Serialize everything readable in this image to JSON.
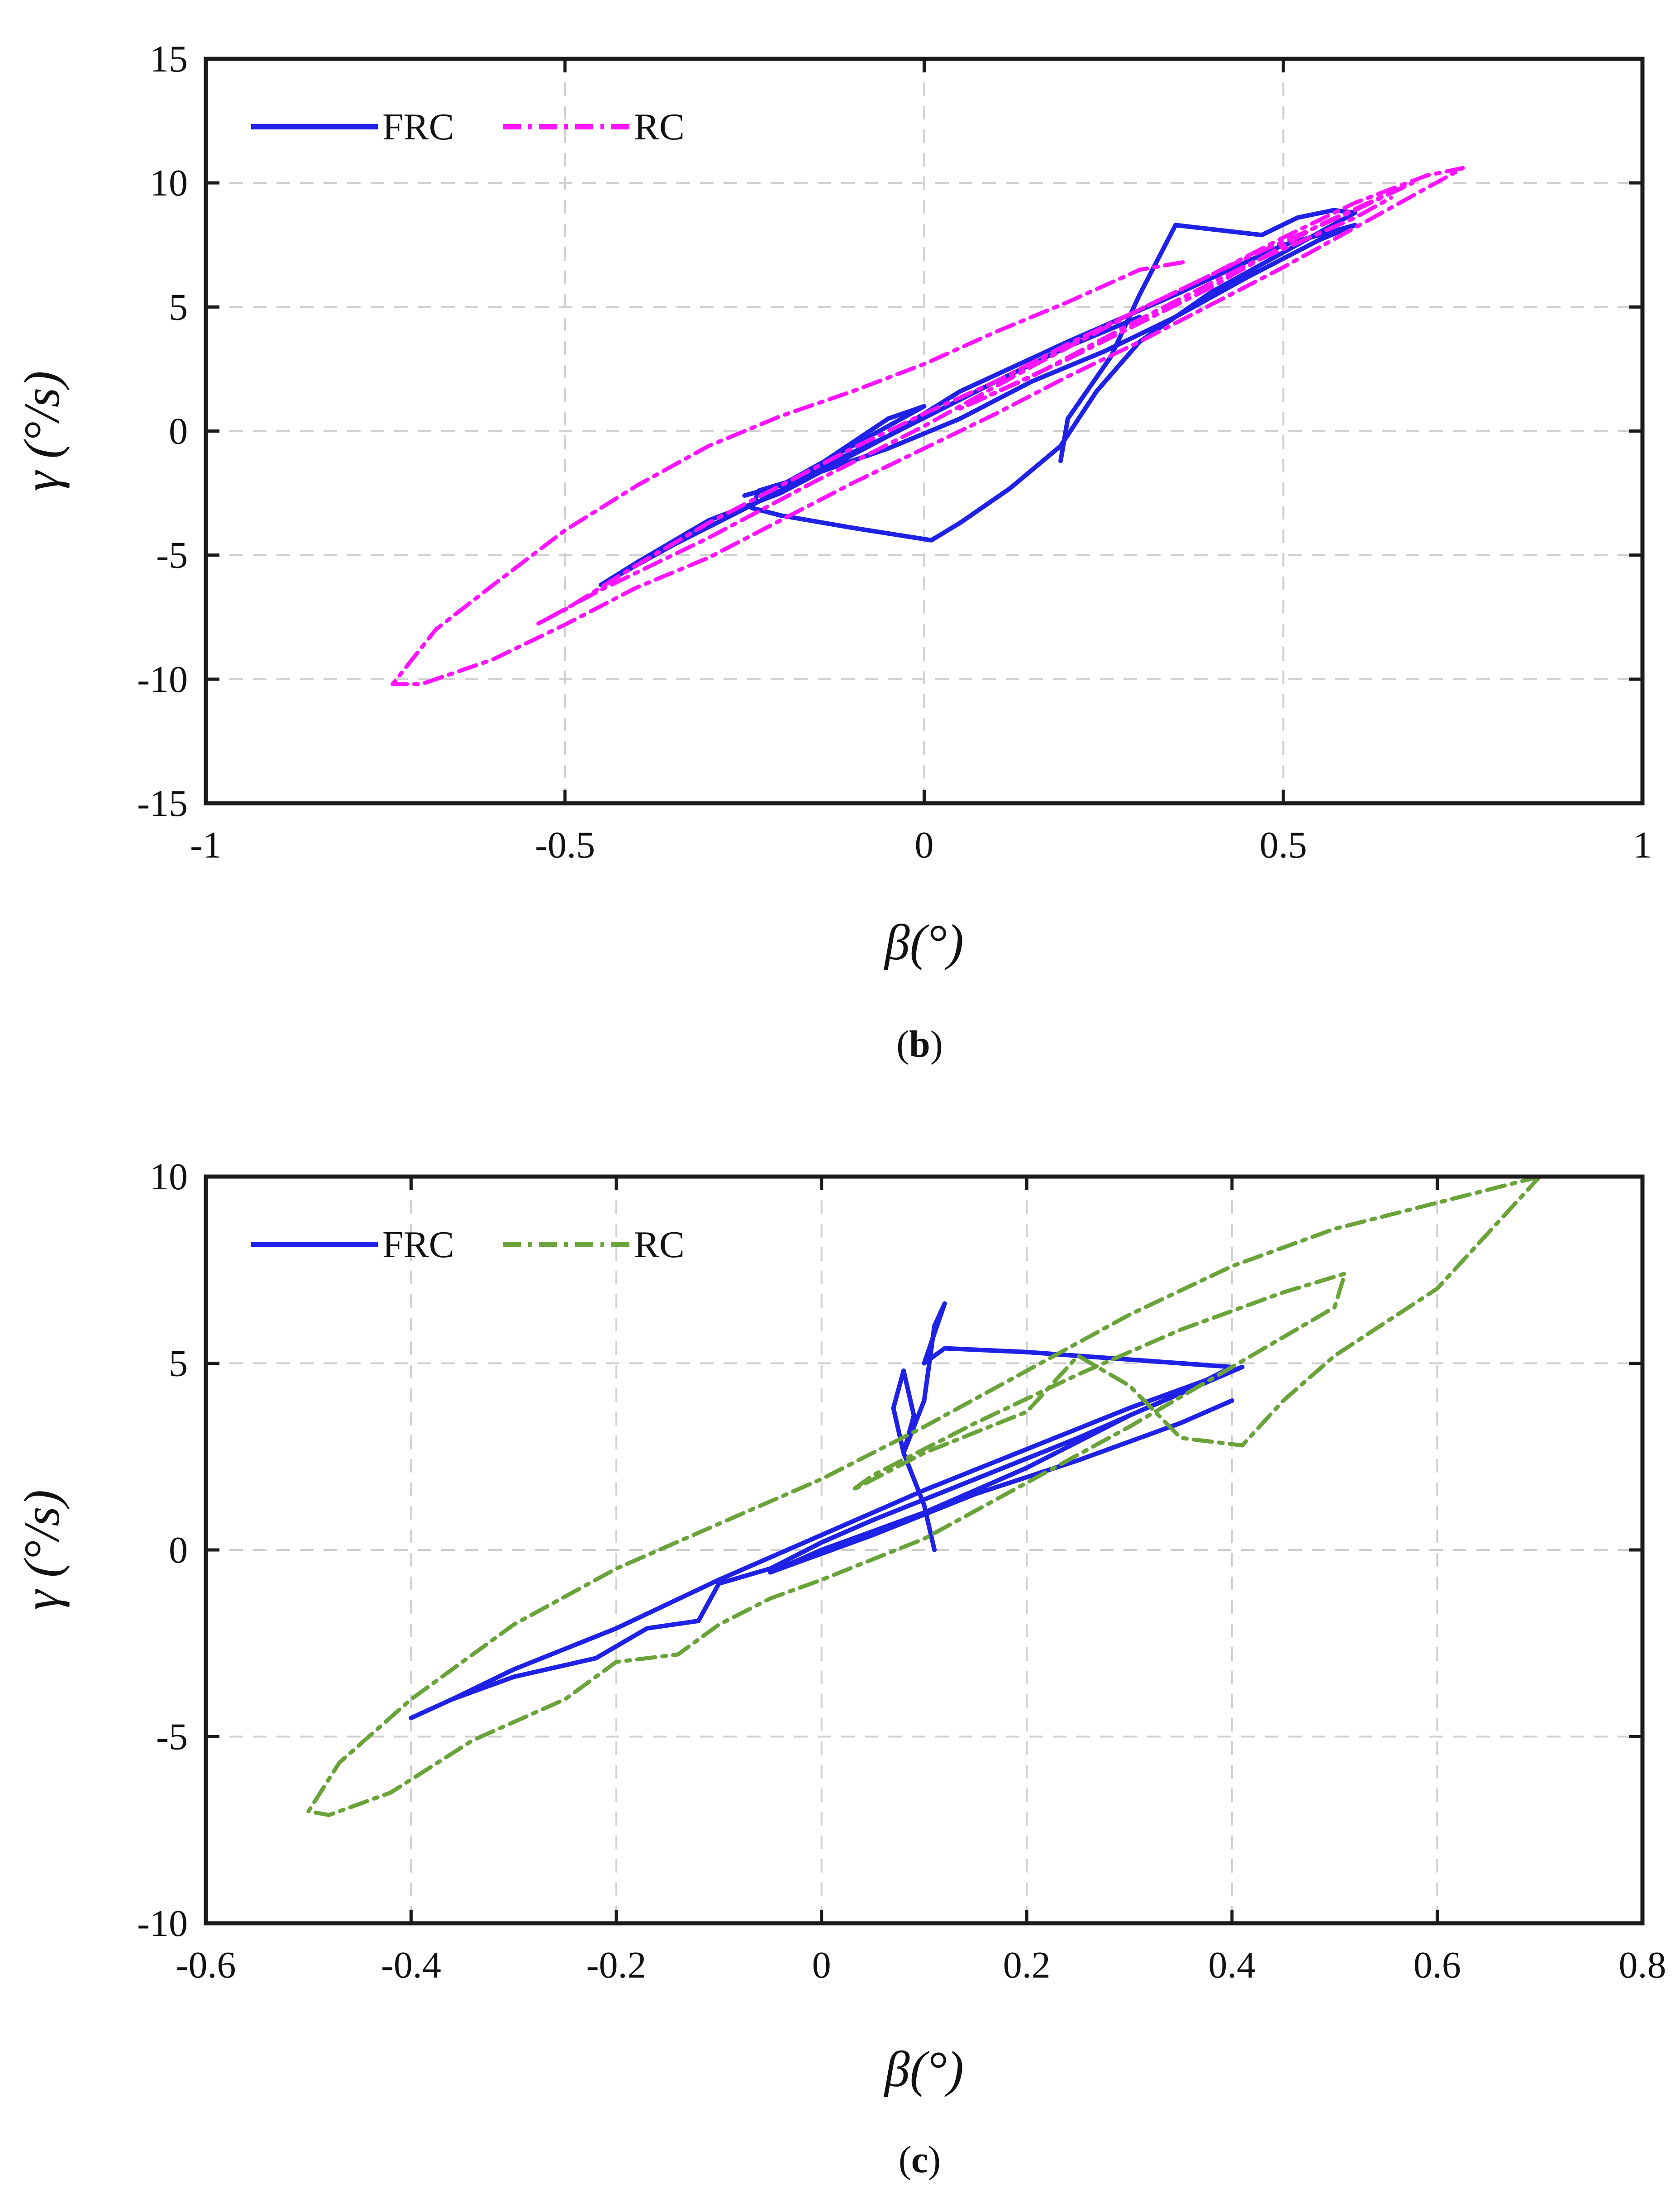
{
  "chart_data": [
    {
      "type": "line",
      "panel_label": "b",
      "xlabel": "β(°)",
      "ylabel": "γ (°/s)",
      "xlim": [
        -1,
        1
      ],
      "ylim": [
        -15,
        15
      ],
      "xticks": [
        -1,
        -0.5,
        0,
        0.5,
        1
      ],
      "yticks": [
        -15,
        -10,
        -5,
        0,
        5,
        10,
        15
      ],
      "xtick_labels": [
        "-1",
        "-0.5",
        "0",
        "0.5",
        "1"
      ],
      "ytick_labels": [
        "-15",
        "-10",
        "-5",
        "0",
        "5",
        "10",
        "15"
      ],
      "grid": true,
      "legend_position": "top-left",
      "series": [
        {
          "name": "FRC",
          "color": "#1f22e6",
          "style": "solid",
          "points": [
            [
              0.19,
              -1.2
            ],
            [
              0.2,
              0.5
            ],
            [
              0.26,
              3.0
            ],
            [
              0.3,
              5.5
            ],
            [
              0.35,
              8.3
            ],
            [
              0.47,
              7.9
            ],
            [
              0.52,
              8.6
            ],
            [
              0.57,
              8.9
            ],
            [
              0.6,
              8.8
            ],
            [
              0.5,
              7.2
            ],
            [
              0.4,
              5.6
            ],
            [
              0.3,
              3.6
            ],
            [
              0.24,
              1.6
            ],
            [
              0.19,
              -0.6
            ],
            [
              0.12,
              -2.3
            ],
            [
              0.05,
              -3.7
            ],
            [
              0.01,
              -4.4
            ],
            [
              -0.1,
              -3.9
            ],
            [
              -0.2,
              -3.4
            ],
            [
              -0.24,
              -3.1
            ],
            [
              -0.23,
              -2.4
            ],
            [
              -0.15,
              -1.7
            ],
            [
              -0.05,
              -0.7
            ],
            [
              0.05,
              0.5
            ],
            [
              0.15,
              2.0
            ],
            [
              0.25,
              3.2
            ],
            [
              0.35,
              4.6
            ],
            [
              0.45,
              6.2
            ],
            [
              0.55,
              7.7
            ],
            [
              0.6,
              8.3
            ],
            [
              0.5,
              7.5
            ],
            [
              0.35,
              5.5
            ],
            [
              0.2,
              3.6
            ],
            [
              0.05,
              1.6
            ],
            [
              -0.05,
              -0.2
            ],
            [
              -0.2,
              -2.5
            ],
            [
              -0.3,
              -3.6
            ],
            [
              -0.4,
              -5.3
            ],
            [
              -0.45,
              -6.2
            ],
            [
              -0.35,
              -4.6
            ],
            [
              -0.2,
              -2.4
            ],
            [
              -0.05,
              0.5
            ],
            [
              0.0,
              1.0
            ],
            [
              -0.1,
              -0.6
            ],
            [
              -0.2,
              -2.2
            ],
            [
              -0.25,
              -2.6
            ],
            [
              -0.2,
              -2.2
            ],
            [
              -0.05,
              -0.2
            ],
            [
              0.1,
              2.0
            ],
            [
              0.2,
              3.4
            ],
            [
              0.3,
              4.6
            ]
          ]
        },
        {
          "name": "RC",
          "color": "#ff14ff",
          "style": "dashdot",
          "points": [
            [
              0.36,
              6.8
            ],
            [
              0.3,
              6.5
            ],
            [
              0.2,
              5.2
            ],
            [
              0.1,
              4.0
            ],
            [
              0.0,
              2.7
            ],
            [
              -0.1,
              1.6
            ],
            [
              -0.2,
              0.6
            ],
            [
              -0.3,
              -0.6
            ],
            [
              -0.4,
              -2.2
            ],
            [
              -0.5,
              -4.0
            ],
            [
              -0.6,
              -6.2
            ],
            [
              -0.68,
              -8.0
            ],
            [
              -0.74,
              -10.2
            ],
            [
              -0.7,
              -10.2
            ],
            [
              -0.6,
              -9.2
            ],
            [
              -0.5,
              -7.8
            ],
            [
              -0.4,
              -6.3
            ],
            [
              -0.3,
              -5.1
            ],
            [
              -0.2,
              -3.6
            ],
            [
              -0.1,
              -2.1
            ],
            [
              0.0,
              -0.7
            ],
            [
              0.1,
              0.7
            ],
            [
              0.2,
              2.2
            ],
            [
              0.3,
              3.6
            ],
            [
              0.4,
              5.1
            ],
            [
              0.5,
              6.6
            ],
            [
              0.6,
              8.2
            ],
            [
              0.7,
              9.8
            ],
            [
              0.75,
              10.6
            ],
            [
              0.7,
              10.3
            ],
            [
              0.6,
              9.2
            ],
            [
              0.5,
              7.8
            ],
            [
              0.4,
              6.3
            ],
            [
              0.3,
              4.9
            ],
            [
              0.2,
              3.5
            ],
            [
              0.1,
              2.0
            ],
            [
              0.0,
              0.7
            ],
            [
              -0.1,
              -0.7
            ],
            [
              -0.2,
              -2.2
            ],
            [
              -0.3,
              -3.7
            ],
            [
              -0.4,
              -5.4
            ],
            [
              -0.5,
              -7.2
            ],
            [
              -0.54,
              -7.8
            ],
            [
              -0.45,
              -6.4
            ],
            [
              -0.3,
              -4.3
            ],
            [
              -0.15,
              -2.0
            ],
            [
              0.0,
              0.2
            ],
            [
              0.15,
              2.6
            ],
            [
              0.3,
              4.9
            ],
            [
              0.45,
              7.0
            ],
            [
              0.6,
              8.9
            ],
            [
              0.68,
              10.0
            ],
            [
              0.55,
              8.3
            ],
            [
              0.4,
              5.8
            ],
            [
              0.2,
              2.9
            ],
            [
              0.05,
              0.9
            ],
            [
              0.15,
              2.2
            ],
            [
              0.3,
              4.5
            ],
            [
              0.45,
              6.7
            ],
            [
              0.6,
              8.6
            ],
            [
              0.65,
              9.4
            ]
          ]
        }
      ]
    },
    {
      "type": "line",
      "panel_label": "c",
      "xlabel": "β(°)",
      "ylabel": "γ (°/s)",
      "xlim": [
        -0.6,
        0.8
      ],
      "ylim": [
        -10,
        10
      ],
      "xticks": [
        -0.6,
        -0.4,
        -0.2,
        0,
        0.2,
        0.4,
        0.6,
        0.8
      ],
      "yticks": [
        -10,
        -5,
        0,
        5,
        10
      ],
      "xtick_labels": [
        "-0.6",
        "-0.4",
        "-0.2",
        "0",
        "0.2",
        "0.4",
        "0.6",
        "0.8"
      ],
      "ytick_labels": [
        "-10",
        "-5",
        "0",
        "5",
        "10"
      ],
      "grid": true,
      "legend_position": "top-left",
      "series": [
        {
          "name": "FRC",
          "color": "#1f22e6",
          "style": "solid",
          "points": [
            [
              0.11,
              0.0
            ],
            [
              0.1,
              1.2
            ],
            [
              0.08,
              2.6
            ],
            [
              0.07,
              3.8
            ],
            [
              0.08,
              4.8
            ],
            [
              0.09,
              3.6
            ],
            [
              0.08,
              2.6
            ],
            [
              0.1,
              4.0
            ],
            [
              0.11,
              6.0
            ],
            [
              0.12,
              6.6
            ],
            [
              0.11,
              5.8
            ],
            [
              0.1,
              5.0
            ],
            [
              0.12,
              5.4
            ],
            [
              0.2,
              5.3
            ],
            [
              0.3,
              5.1
            ],
            [
              0.4,
              4.9
            ],
            [
              0.35,
              4.2
            ],
            [
              0.25,
              3.0
            ],
            [
              0.15,
              1.9
            ],
            [
              0.05,
              0.8
            ],
            [
              0.0,
              0.2
            ],
            [
              -0.05,
              -0.5
            ],
            [
              -0.1,
              -0.9
            ],
            [
              -0.12,
              -1.9
            ],
            [
              -0.17,
              -2.1
            ],
            [
              -0.22,
              -2.9
            ],
            [
              -0.3,
              -3.4
            ],
            [
              -0.36,
              -4.0
            ],
            [
              -0.4,
              -4.5
            ],
            [
              -0.36,
              -4.0
            ],
            [
              -0.3,
              -3.2
            ],
            [
              -0.2,
              -2.1
            ],
            [
              -0.1,
              -0.8
            ],
            [
              0.0,
              0.4
            ],
            [
              0.1,
              1.6
            ],
            [
              0.2,
              2.7
            ],
            [
              0.3,
              3.8
            ],
            [
              0.41,
              4.9
            ],
            [
              0.3,
              3.6
            ],
            [
              0.2,
              2.2
            ],
            [
              0.1,
              1.0
            ],
            [
              0.0,
              0.0
            ],
            [
              -0.05,
              -0.6
            ],
            [
              0.05,
              0.4
            ],
            [
              0.15,
              1.5
            ],
            [
              0.25,
              2.4
            ],
            [
              0.35,
              3.4
            ],
            [
              0.4,
              4.0
            ]
          ]
        },
        {
          "name": "RC",
          "color": "#6aa33a",
          "style": "dashdot",
          "points": [
            [
              0.7,
              10.0
            ],
            [
              0.6,
              9.3
            ],
            [
              0.5,
              8.6
            ],
            [
              0.4,
              7.6
            ],
            [
              0.3,
              6.3
            ],
            [
              0.2,
              4.8
            ],
            [
              0.1,
              3.3
            ],
            [
              0.0,
              1.9
            ],
            [
              -0.1,
              0.7
            ],
            [
              -0.2,
              -0.5
            ],
            [
              -0.3,
              -2.0
            ],
            [
              -0.4,
              -4.0
            ],
            [
              -0.47,
              -5.7
            ],
            [
              -0.5,
              -7.0
            ],
            [
              -0.48,
              -7.1
            ],
            [
              -0.42,
              -6.5
            ],
            [
              -0.34,
              -5.1
            ],
            [
              -0.25,
              -4.0
            ],
            [
              -0.2,
              -3.0
            ],
            [
              -0.14,
              -2.8
            ],
            [
              -0.1,
              -2.0
            ],
            [
              -0.05,
              -1.3
            ],
            [
              0.0,
              -0.8
            ],
            [
              0.1,
              0.3
            ],
            [
              0.2,
              1.8
            ],
            [
              0.3,
              3.3
            ],
            [
              0.4,
              4.9
            ],
            [
              0.5,
              6.5
            ],
            [
              0.51,
              7.4
            ],
            [
              0.45,
              6.9
            ],
            [
              0.35,
              5.9
            ],
            [
              0.25,
              4.7
            ],
            [
              0.15,
              3.4
            ],
            [
              0.05,
              2.0
            ],
            [
              0.03,
              1.6
            ],
            [
              0.1,
              2.6
            ],
            [
              0.2,
              3.7
            ],
            [
              0.25,
              5.2
            ],
            [
              0.3,
              4.4
            ],
            [
              0.35,
              3.0
            ],
            [
              0.41,
              2.8
            ],
            [
              0.45,
              4.0
            ],
            [
              0.5,
              5.2
            ],
            [
              0.6,
              7.0
            ],
            [
              0.7,
              10.0
            ]
          ]
        }
      ]
    }
  ]
}
